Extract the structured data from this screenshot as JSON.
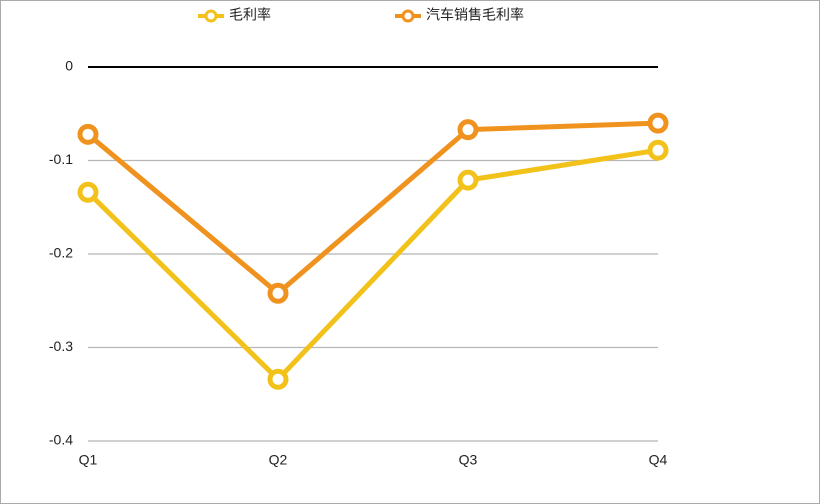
{
  "chart_data": {
    "type": "line",
    "categories": [
      "Q1",
      "Q2",
      "Q3",
      "Q4"
    ],
    "series": [
      {
        "name": "毛利率",
        "color": "#f2c21b",
        "values": [
          -0.134,
          -0.334,
          -0.121,
          -0.089
        ]
      },
      {
        "name": "汽车销售毛利率",
        "color": "#f0931e",
        "values": [
          -0.072,
          -0.242,
          -0.067,
          -0.06
        ]
      }
    ],
    "ylim": [
      -0.4,
      0
    ],
    "yticks": [
      0,
      -0.1,
      -0.2,
      -0.3,
      -0.4
    ],
    "grid": true,
    "legend": "top"
  }
}
